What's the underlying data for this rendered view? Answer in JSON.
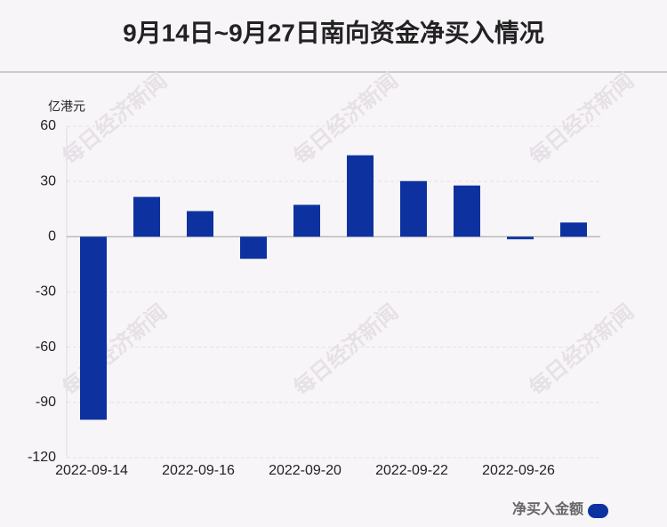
{
  "chart_data": {
    "type": "bar",
    "title": "9月14日~9月27日南向资金净买入情况",
    "y_axis_label": "亿港元",
    "watermark": "每日经济新闻",
    "categories": [
      "2022-09-14",
      null,
      "2022-09-16",
      null,
      "2022-09-20",
      null,
      "2022-09-22",
      null,
      "2022-09-26",
      null
    ],
    "series": [
      {
        "name": "净买入金额",
        "color": "#0d32a0",
        "values": [
          -99.4,
          21.6,
          13.9,
          -12.0,
          17.3,
          44.2,
          30.2,
          27.8,
          -1.4,
          7.7
        ]
      }
    ],
    "ylim": [
      -120,
      60
    ],
    "yticks": [
      -120,
      -90,
      -60,
      -30,
      0,
      30,
      60
    ],
    "grid": true
  }
}
